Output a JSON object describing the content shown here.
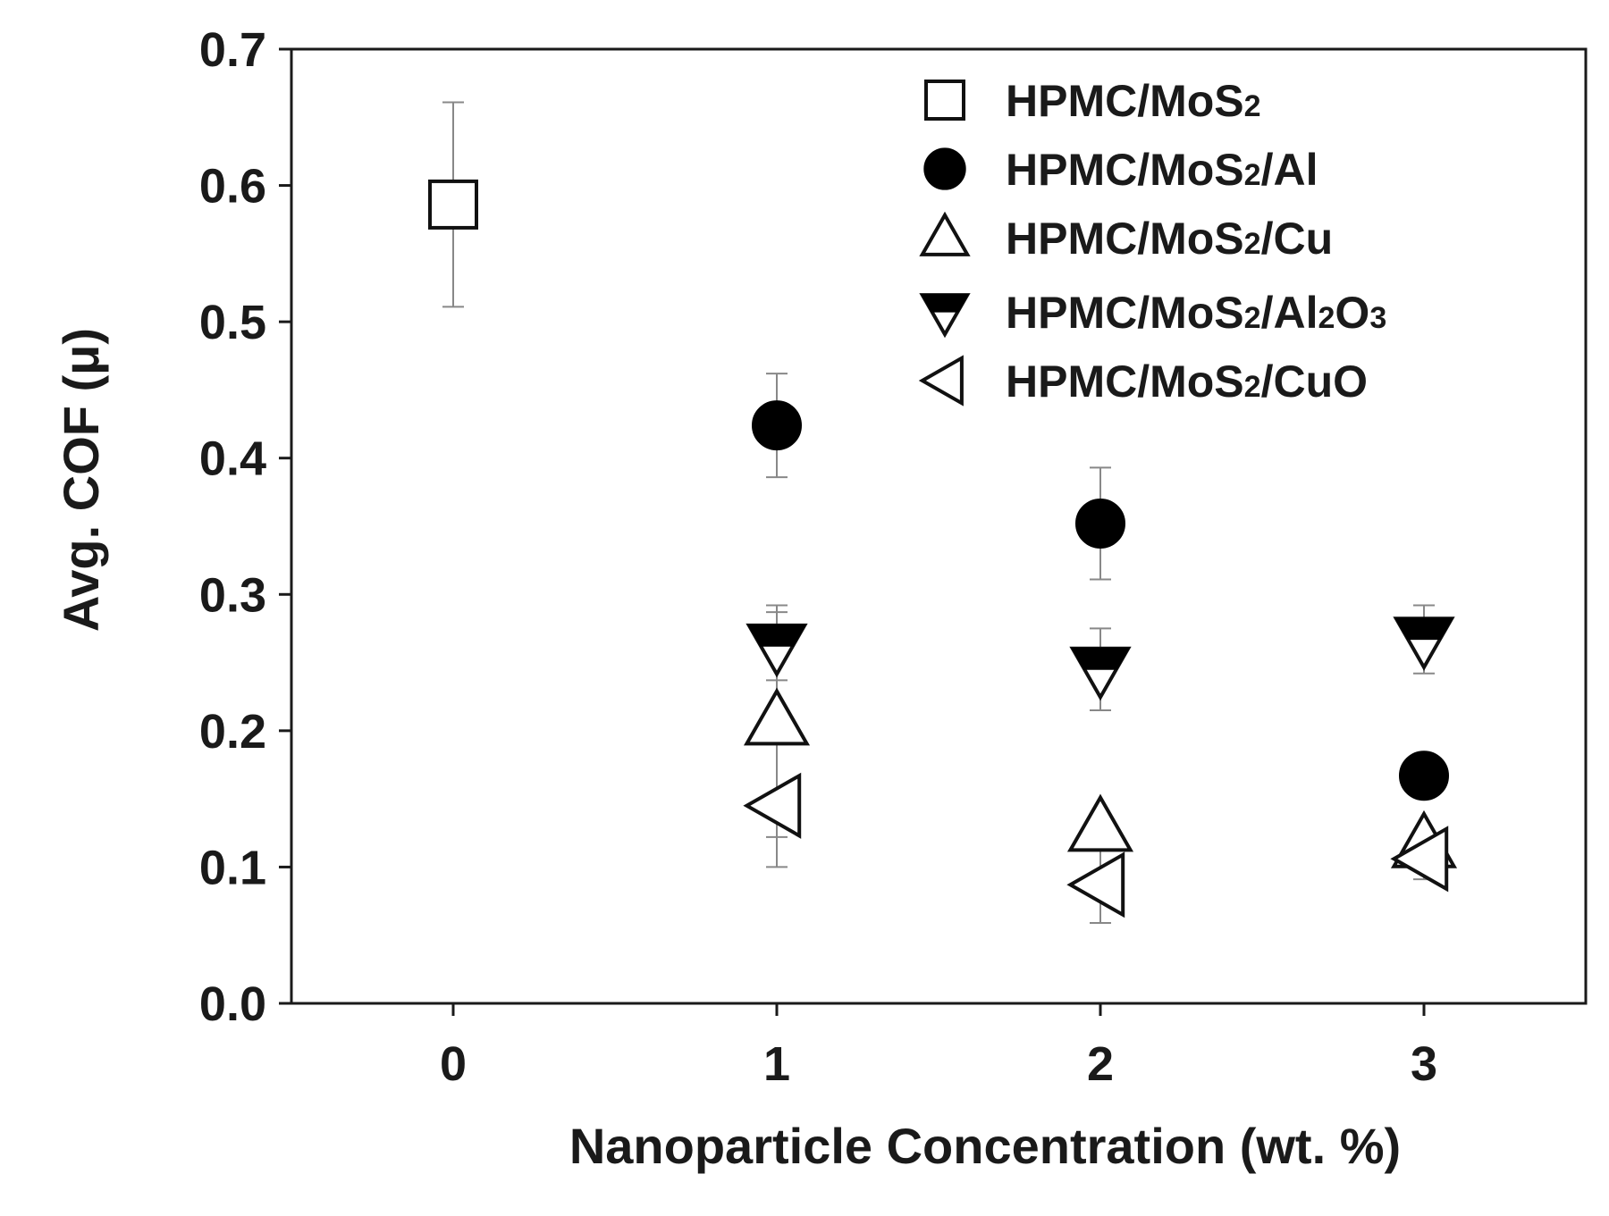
{
  "chart_data": {
    "type": "scatter",
    "xlabel": "Nanoparticle Concentration (wt. %)",
    "ylabel": "Avg. COF (μ)",
    "xlim": [
      -0.5,
      3.5
    ],
    "ylim": [
      0.0,
      0.7
    ],
    "xticks": [
      "0",
      "1",
      "2",
      "3"
    ],
    "yticks": [
      "0.0",
      "0.1",
      "0.2",
      "0.3",
      "0.4",
      "0.5",
      "0.6",
      "0.7"
    ],
    "grid": false,
    "legend_position": "top-right",
    "series": [
      {
        "name": "HPMC/MoS2",
        "label_parts": [
          {
            "t": "HPMC/MoS",
            "sub": false
          },
          {
            "t": "2",
            "sub": true
          }
        ],
        "marker": "open-square",
        "points": [
          {
            "x": 0,
            "y": 0.586,
            "err": 0.075
          }
        ]
      },
      {
        "name": "HPMC/MoS2/Al",
        "label_parts": [
          {
            "t": "HPMC/MoS",
            "sub": false
          },
          {
            "t": "2",
            "sub": true
          },
          {
            "t": "/Al",
            "sub": false
          }
        ],
        "marker": "filled-circle",
        "points": [
          {
            "x": 1,
            "y": 0.424,
            "err": 0.038
          },
          {
            "x": 2,
            "y": 0.352,
            "err": 0.041
          },
          {
            "x": 3,
            "y": 0.167,
            "err": 0.0
          }
        ]
      },
      {
        "name": "HPMC/MoS2/Cu",
        "label_parts": [
          {
            "t": "HPMC/MoS",
            "sub": false
          },
          {
            "t": "2",
            "sub": true
          },
          {
            "t": "/Cu",
            "sub": false
          }
        ],
        "marker": "open-triangle-up",
        "points": [
          {
            "x": 1,
            "y": 0.207,
            "err": 0.085
          },
          {
            "x": 2,
            "y": 0.129,
            "err": 0.01
          },
          {
            "x": 3,
            "y": 0.117,
            "err": 0.01
          }
        ]
      },
      {
        "name": "HPMC/MoS2/Al2O3",
        "label_parts": [
          {
            "t": "HPMC/MoS",
            "sub": false
          },
          {
            "t": "2",
            "sub": true
          },
          {
            "t": "/Al",
            "sub": false
          },
          {
            "t": "2",
            "sub": true
          },
          {
            "t": "O",
            "sub": false
          },
          {
            "t": "3",
            "sub": true
          }
        ],
        "marker": "half-filled-triangle-down",
        "points": [
          {
            "x": 1,
            "y": 0.262,
            "err": 0.025
          },
          {
            "x": 2,
            "y": 0.245,
            "err": 0.03
          },
          {
            "x": 3,
            "y": 0.267,
            "err": 0.025
          }
        ]
      },
      {
        "name": "HPMC/MoS2/CuO",
        "label_parts": [
          {
            "t": "HPMC/MoS",
            "sub": false
          },
          {
            "t": "2",
            "sub": true
          },
          {
            "t": "/CuO",
            "sub": false
          }
        ],
        "marker": "open-triangle-left",
        "points": [
          {
            "x": 1,
            "y": 0.145,
            "err": 0.045
          },
          {
            "x": 2,
            "y": 0.087,
            "err": 0.028
          },
          {
            "x": 3,
            "y": 0.106,
            "err": 0.015
          }
        ]
      }
    ]
  }
}
